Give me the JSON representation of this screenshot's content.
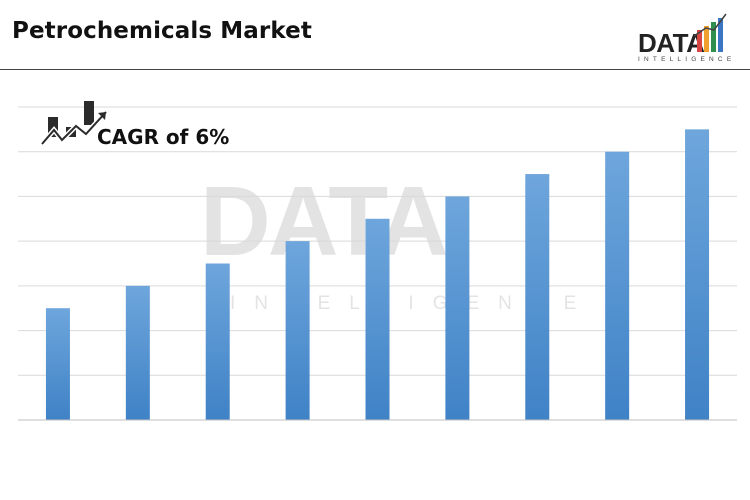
{
  "header": {
    "title": "Petrochemicals Market"
  },
  "logo": {
    "word": "DATA",
    "sub": "INTELLIGENCE",
    "bar_colors": [
      "#d64541",
      "#f0a02f",
      "#2f8f4e",
      "#3a76c4"
    ]
  },
  "watermark": {
    "word": "DATA",
    "sub": "INTELLIGENCE"
  },
  "cagr": {
    "label": "CAGR of 6%"
  },
  "colors": {
    "bar_top": "#6ea6dc",
    "bar_bottom": "#3f82c6",
    "grid": "#d9d9d9",
    "axis": "#bfbfbf"
  },
  "chart_data": {
    "type": "bar",
    "title": "",
    "xlabel": "",
    "ylabel": "",
    "categories": [
      "",
      "",
      "",
      "",
      "",
      "",
      "",
      "",
      ""
    ],
    "values": [
      2.5,
      3.0,
      3.5,
      4.0,
      4.5,
      5.0,
      5.5,
      6.0,
      6.5
    ],
    "ylim": [
      0,
      7
    ],
    "grid": true,
    "legend": "none"
  }
}
